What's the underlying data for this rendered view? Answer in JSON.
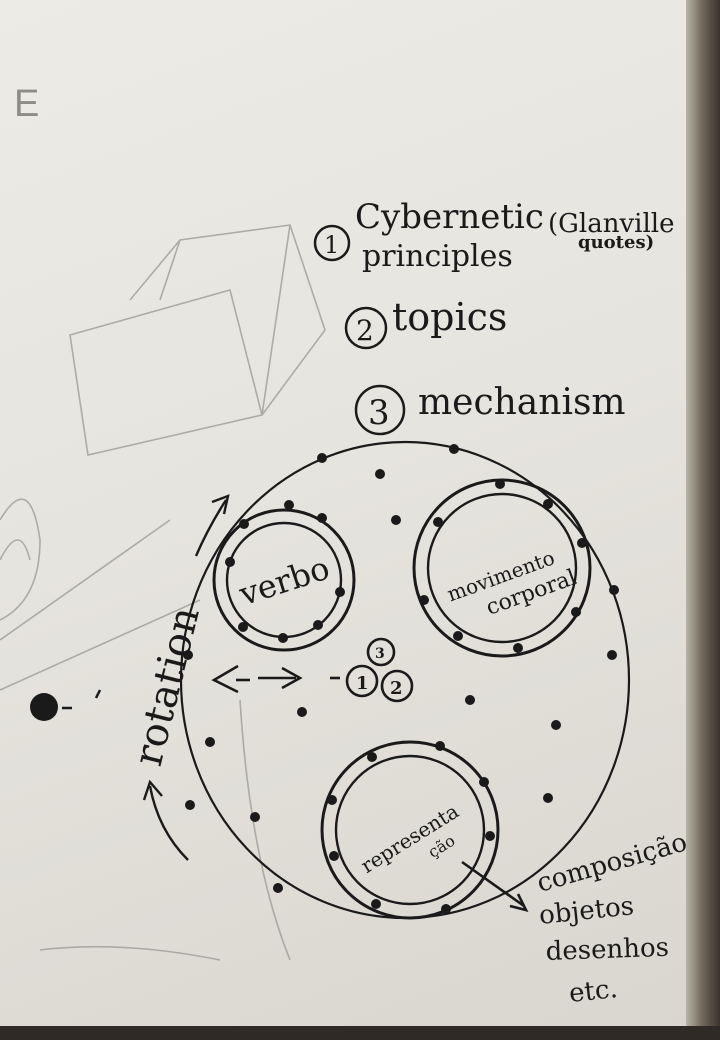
{
  "corner_letter": "E",
  "list": [
    {
      "num": "1",
      "line1": "Cybernetic",
      "line2": "principles",
      "note": "(Glanville",
      "note2": "quotes)"
    },
    {
      "num": "2",
      "line1": "topics"
    },
    {
      "num": "3",
      "line1": "mechanism"
    }
  ],
  "rotation_label": "rotation",
  "wheel": {
    "circles": [
      {
        "label1": "verbo",
        "label2": ""
      },
      {
        "label1": "movimento",
        "label2": "corporal"
      },
      {
        "label1": "representa",
        "label2": "ção"
      }
    ],
    "hub_numbers": [
      "1",
      "2",
      "3"
    ]
  },
  "output_list": [
    "composição",
    "objetos",
    "desenhos",
    "etc."
  ],
  "colors": {
    "ink": "#1a1a1a",
    "pencil": "#9a9893",
    "paper": "#e9e7e1"
  }
}
